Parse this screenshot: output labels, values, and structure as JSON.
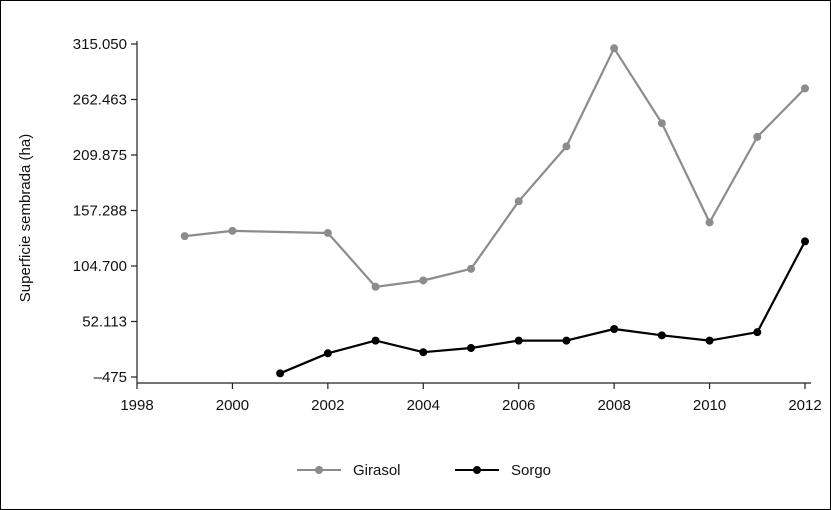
{
  "chart_data": {
    "type": "line",
    "title": "",
    "xlabel": "",
    "ylabel": "Superficie  sembrada (ha)",
    "xlim": [
      1998,
      2012
    ],
    "ylim": [
      -475,
      315050
    ],
    "x_ticks": [
      "1998",
      "2000",
      "2002",
      "2004",
      "2006",
      "2008",
      "2010",
      "2012"
    ],
    "y_ticks": [
      {
        "value": -475,
        "label": "–475"
      },
      {
        "value": 52113,
        "label": "52.113"
      },
      {
        "value": 104700,
        "label": "104.700"
      },
      {
        "value": 157288,
        "label": "157.288"
      },
      {
        "value": 209875,
        "label": "209.875"
      },
      {
        "value": 262463,
        "label": "262.463"
      },
      {
        "value": 315050,
        "label": "315.050"
      }
    ],
    "grid": false,
    "legend_position": "bottom-center",
    "series": [
      {
        "name": "Girasol",
        "color": "#8c8c8c",
        "points": [
          {
            "x": 1999,
            "y": 133000
          },
          {
            "x": 2000,
            "y": 138000
          },
          {
            "x": 2002,
            "y": 136000
          },
          {
            "x": 2003,
            "y": 85000
          },
          {
            "x": 2004,
            "y": 91000
          },
          {
            "x": 2005,
            "y": 102000
          },
          {
            "x": 2006,
            "y": 166000
          },
          {
            "x": 2007,
            "y": 218000
          },
          {
            "x": 2008,
            "y": 311000
          },
          {
            "x": 2009,
            "y": 240000
          },
          {
            "x": 2010,
            "y": 146000
          },
          {
            "x": 2011,
            "y": 227000
          },
          {
            "x": 2012,
            "y": 273000
          }
        ]
      },
      {
        "name": "Sorgo",
        "color": "#000000",
        "points": [
          {
            "x": 2001,
            "y": 3000
          },
          {
            "x": 2002,
            "y": 22000
          },
          {
            "x": 2003,
            "y": 34000
          },
          {
            "x": 2004,
            "y": 23000
          },
          {
            "x": 2005,
            "y": 27000
          },
          {
            "x": 2006,
            "y": 34000
          },
          {
            "x": 2007,
            "y": 34000
          },
          {
            "x": 2008,
            "y": 45000
          },
          {
            "x": 2009,
            "y": 39000
          },
          {
            "x": 2010,
            "y": 34000
          },
          {
            "x": 2011,
            "y": 42000
          },
          {
            "x": 2012,
            "y": 128000
          }
        ]
      }
    ]
  }
}
